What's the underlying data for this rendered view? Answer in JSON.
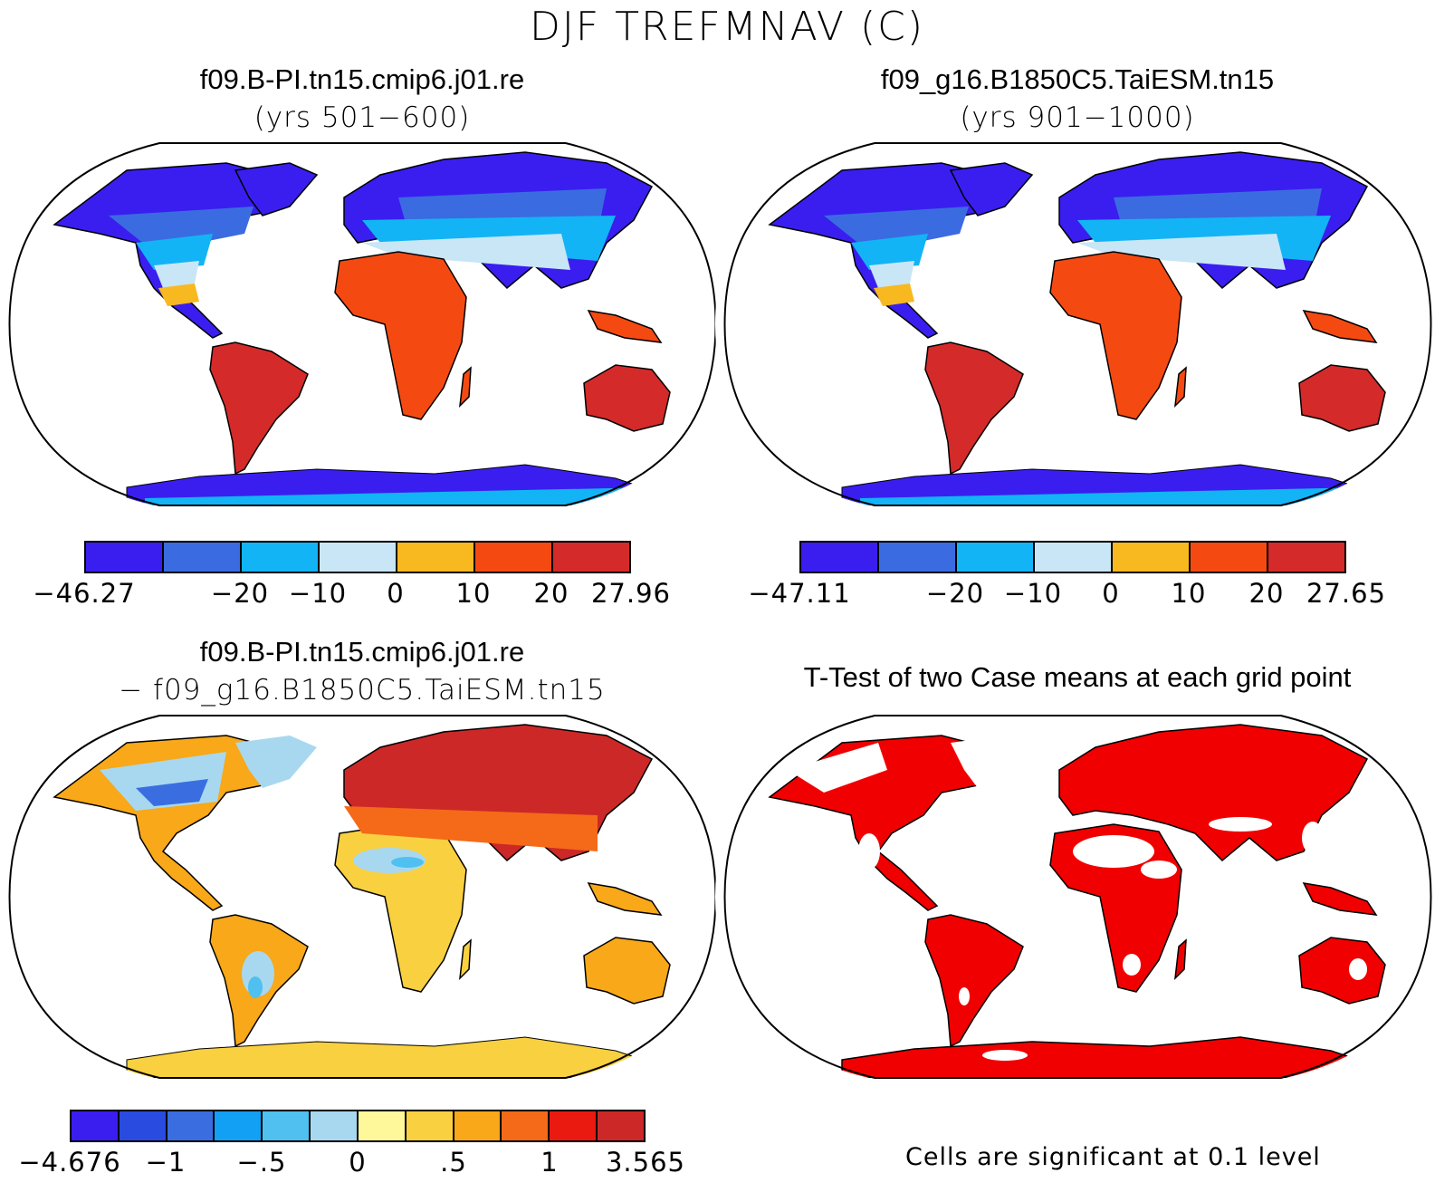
{
  "figure": {
    "title": "DJF TREFMNAV (C)",
    "panels": [
      {
        "title": "f09.B-PI.tn15.cmip6.j01.re",
        "subtitle": "(yrs 501−600)",
        "colorbar": {
          "colors": [
            "#3a1ef0",
            "#3b6be0",
            "#12b4f5",
            "#c8e6f5",
            "#f8b820",
            "#f44a12",
            "#d42a2a"
          ],
          "ticks": [
            "−46.27",
            "−20",
            "−10",
            "0",
            "10",
            "20",
            "27.96"
          ]
        }
      },
      {
        "title": "f09_g16.B1850C5.TaiESM.tn15",
        "subtitle": "(yrs 901−1000)",
        "colorbar": {
          "colors": [
            "#3a1ef0",
            "#3b6be0",
            "#12b4f5",
            "#c8e6f5",
            "#f8b820",
            "#f44a12",
            "#d42a2a"
          ],
          "ticks": [
            "−47.11",
            "−20",
            "−10",
            "0",
            "10",
            "20",
            "27.65"
          ]
        }
      },
      {
        "title": "f09.B-PI.tn15.cmip6.j01.re",
        "subtitle": "− f09_g16.B1850C5.TaiESM.tn15",
        "colorbar": {
          "colors": [
            "#3a1ef0",
            "#2a4be0",
            "#3a6ee0",
            "#12a0f5",
            "#50c0f0",
            "#a8d8f0",
            "#fff89a",
            "#f8d040",
            "#f8a818",
            "#f46a18",
            "#ea1a10",
            "#cc2828"
          ],
          "ticks": [
            "−4.676",
            "−1",
            "−.5",
            "0",
            ".5",
            "1",
            "3.565"
          ]
        }
      },
      {
        "title": "T-Test of two Case means at each grid point",
        "footnote": "Cells are significant at 0.1 level",
        "significant_color": "#f00000"
      }
    ]
  }
}
